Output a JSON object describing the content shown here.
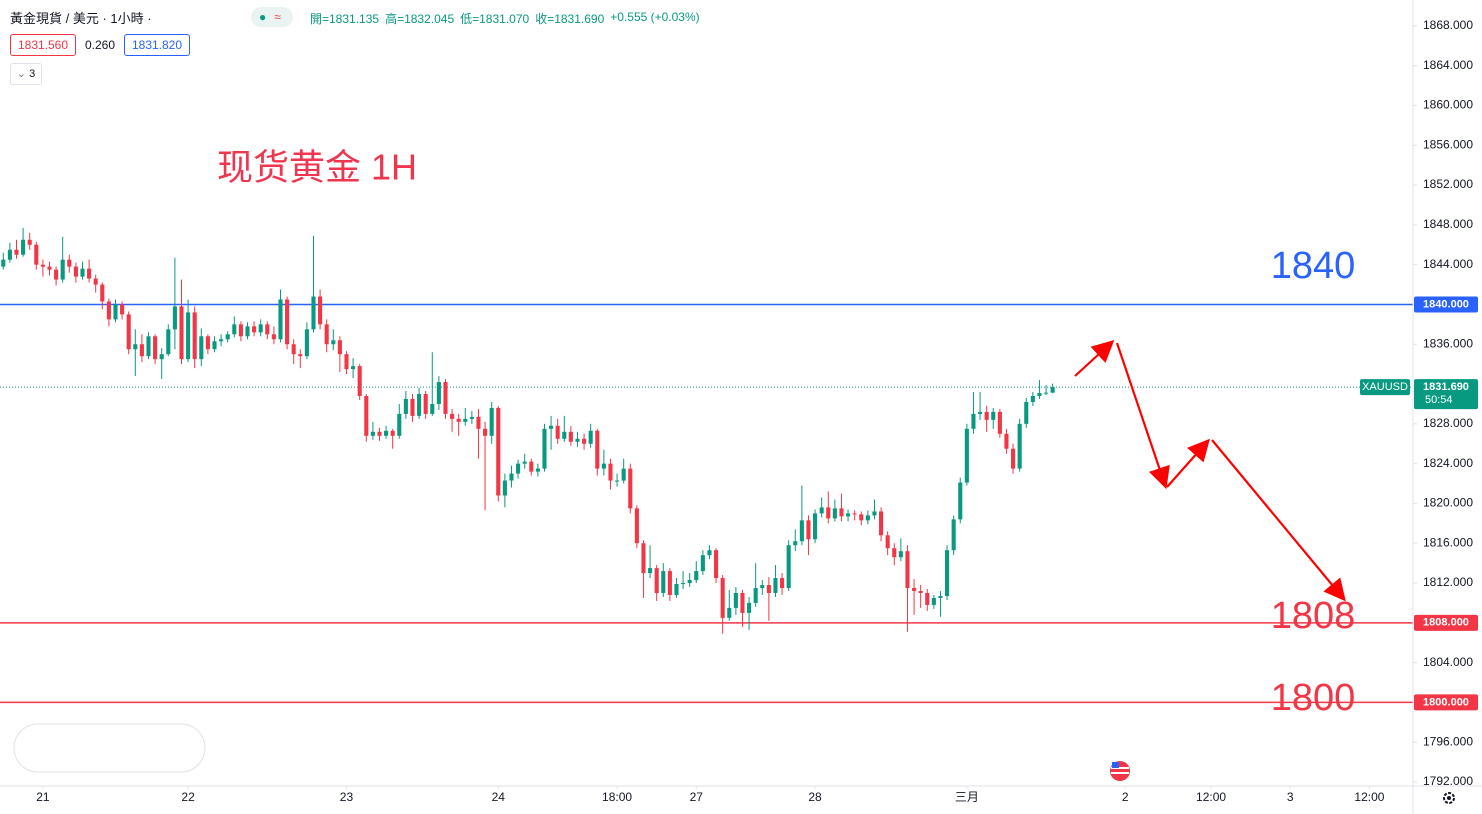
{
  "toolbar": {
    "symbol": "黃金現貨 / 美元 · 1小時 ·",
    "legend": [
      "開=1831.135",
      "高=1832.045",
      "低=1831.070",
      "收=1831.690",
      "+0.555 (+0.03%)"
    ],
    "bid": "1831.560",
    "spread": "0.260",
    "ask": "1831.820",
    "indicator_count": "3"
  },
  "chart_data": {
    "type": "candlestick",
    "title": "现货黄金 1H",
    "up_color": "#089981",
    "down_color": "#f23645",
    "xlim": [
      -0.5,
      213.6
    ],
    "ylim": [
      1791.6,
      1870.6
    ],
    "grid": false,
    "xticks": [
      {
        "value": 6,
        "label": "21"
      },
      {
        "value": 28,
        "label": "22"
      },
      {
        "value": 52,
        "label": "23"
      },
      {
        "value": 75,
        "label": "24"
      },
      {
        "value": 93,
        "label": "18:00"
      },
      {
        "value": 105,
        "label": "27"
      },
      {
        "value": 123,
        "label": "28"
      },
      {
        "value": 146,
        "label": "三月"
      },
      {
        "value": 170,
        "label": "2"
      },
      {
        "value": 183,
        "label": "12:00"
      },
      {
        "value": 195,
        "label": "3"
      },
      {
        "value": 207,
        "label": "12:00"
      }
    ],
    "yticks": [
      {
        "value": 1868,
        "label": "1868.000"
      },
      {
        "value": 1864,
        "label": "1864.000"
      },
      {
        "value": 1860,
        "label": "1860.000"
      },
      {
        "value": 1856,
        "label": "1856.000"
      },
      {
        "value": 1852,
        "label": "1852.000"
      },
      {
        "value": 1848,
        "label": "1848.000"
      },
      {
        "value": 1844,
        "label": "1844.000"
      },
      {
        "value": 1836,
        "label": "1836.000"
      },
      {
        "value": 1828,
        "label": "1828.000"
      },
      {
        "value": 1824,
        "label": "1824.000"
      },
      {
        "value": 1820,
        "label": "1820.000"
      },
      {
        "value": 1816,
        "label": "1816.000"
      },
      {
        "value": 1812,
        "label": "1812.000"
      },
      {
        "value": 1804,
        "label": "1804.000"
      },
      {
        "value": 1796,
        "label": "1796.000"
      },
      {
        "value": 1792,
        "label": "1792.000"
      }
    ],
    "hlines": [
      {
        "value": 1840,
        "label": "1840.000",
        "color": "#2962ff"
      },
      {
        "value": 1808,
        "label": "1808.000",
        "color": "#f23645"
      },
      {
        "value": 1800,
        "label": "1800.000",
        "color": "#f23645"
      }
    ],
    "last_price": {
      "value": 1831.69,
      "label": "1831.690",
      "symbol": "XAUUSD",
      "countdown": "50:54"
    },
    "x": [
      0,
      1,
      2,
      3,
      4,
      5,
      6,
      7,
      8,
      9,
      10,
      11,
      12,
      13,
      14,
      15,
      16,
      17,
      18,
      19,
      20,
      21,
      22,
      23,
      24,
      25,
      26,
      27,
      28,
      29,
      30,
      31,
      32,
      33,
      34,
      35,
      36,
      37,
      38,
      39,
      40,
      41,
      42,
      43,
      44,
      45,
      46,
      47,
      48,
      49,
      50,
      51,
      52,
      53,
      54,
      55,
      56,
      57,
      58,
      59,
      60,
      61,
      62,
      63,
      64,
      65,
      66,
      67,
      68,
      69,
      70,
      71,
      72,
      73,
      74,
      75,
      76,
      77,
      78,
      79,
      80,
      81,
      82,
      83,
      84,
      85,
      86,
      87,
      88,
      89,
      90,
      91,
      92,
      93,
      94,
      95,
      96,
      97,
      98,
      99,
      100,
      101,
      102,
      103,
      104,
      105,
      106,
      107,
      108,
      109,
      110,
      111,
      112,
      113,
      114,
      115,
      116,
      117,
      118,
      119,
      120,
      121,
      122,
      123,
      124,
      125,
      126,
      127,
      128,
      129,
      130,
      131,
      132,
      133,
      134,
      135,
      136,
      137,
      138,
      139,
      140,
      141,
      142,
      143,
      144,
      145,
      146,
      147,
      148,
      149,
      150,
      151,
      152,
      153,
      154,
      155,
      156,
      157,
      158,
      159
    ],
    "candles": [
      [
        1843.8,
        1845.2,
        1843.5,
        1844.5
      ],
      [
        1844.5,
        1846.2,
        1844.2,
        1845.5
      ],
      [
        1845.5,
        1846.5,
        1844.6,
        1845
      ],
      [
        1845,
        1847.7,
        1844.8,
        1846.5
      ],
      [
        1846.5,
        1847.2,
        1845.5,
        1846
      ],
      [
        1846,
        1846.3,
        1843.5,
        1844
      ],
      [
        1844,
        1844.5,
        1842.8,
        1843.8
      ],
      [
        1843.8,
        1844.3,
        1842.9,
        1843.5
      ],
      [
        1843.5,
        1843.8,
        1841.9,
        1842.5
      ],
      [
        1842.5,
        1846.8,
        1842.2,
        1844.5
      ],
      [
        1844.5,
        1845,
        1843.2,
        1843.8
      ],
      [
        1843.8,
        1844.2,
        1842.2,
        1842.8
      ],
      [
        1842.8,
        1844.3,
        1842.5,
        1843.6
      ],
      [
        1843.6,
        1844.5,
        1842.2,
        1842.6
      ],
      [
        1842.6,
        1843,
        1841.2,
        1842
      ],
      [
        1842,
        1842.2,
        1839.5,
        1840.3
      ],
      [
        1840.3,
        1840.6,
        1837.8,
        1838.5
      ],
      [
        1838.5,
        1840.5,
        1838.2,
        1840
      ],
      [
        1840,
        1840.3,
        1838.5,
        1839
      ],
      [
        1839,
        1839.3,
        1835,
        1835.5
      ],
      [
        1835.5,
        1837.5,
        1832.8,
        1836
      ],
      [
        1836,
        1837,
        1834.2,
        1834.8
      ],
      [
        1834.8,
        1837.2,
        1834.5,
        1836.8
      ],
      [
        1836.8,
        1837,
        1834,
        1834.5
      ],
      [
        1834.5,
        1835.6,
        1832.5,
        1835
      ],
      [
        1835,
        1838,
        1834.8,
        1837.5
      ],
      [
        1837.5,
        1844.7,
        1835.5,
        1839.8
      ],
      [
        1839.8,
        1842.5,
        1834,
        1834.5
      ],
      [
        1834.5,
        1840.5,
        1834.2,
        1839.2
      ],
      [
        1839.2,
        1839.8,
        1833.6,
        1834.5
      ],
      [
        1834.5,
        1837.6,
        1833.8,
        1836.8
      ],
      [
        1836.8,
        1837,
        1835,
        1835.5
      ],
      [
        1835.5,
        1836.8,
        1835.2,
        1836.3
      ],
      [
        1836.3,
        1837,
        1835.8,
        1836.5
      ],
      [
        1836.5,
        1837.3,
        1836.2,
        1837
      ],
      [
        1837,
        1838.8,
        1836.7,
        1838
      ],
      [
        1838,
        1838.3,
        1836.3,
        1836.8
      ],
      [
        1836.8,
        1838.2,
        1836.5,
        1837.8
      ],
      [
        1837.8,
        1838.3,
        1836.8,
        1837.2
      ],
      [
        1837.2,
        1838.5,
        1836.8,
        1838
      ],
      [
        1838,
        1838.3,
        1836.5,
        1837
      ],
      [
        1837,
        1837.8,
        1836,
        1836.5
      ],
      [
        1836.5,
        1841.5,
        1836.2,
        1840.5
      ],
      [
        1840.5,
        1840.8,
        1835.5,
        1836
      ],
      [
        1836,
        1836.5,
        1834,
        1835
      ],
      [
        1835,
        1835.5,
        1833.6,
        1834.8
      ],
      [
        1834.8,
        1838.2,
        1834.5,
        1837.5
      ],
      [
        1837.5,
        1846.9,
        1837.2,
        1840.8
      ],
      [
        1840.8,
        1841.5,
        1837.5,
        1838
      ],
      [
        1838,
        1838.5,
        1835.2,
        1836
      ],
      [
        1836,
        1837.5,
        1835.4,
        1836.4
      ],
      [
        1836.4,
        1836.8,
        1833.2,
        1835
      ],
      [
        1835,
        1835.3,
        1833,
        1833.5
      ],
      [
        1833.5,
        1834.6,
        1832.6,
        1833.8
      ],
      [
        1833.8,
        1834,
        1830.4,
        1830.8
      ],
      [
        1830.8,
        1831,
        1826.2,
        1826.8
      ],
      [
        1826.8,
        1828.2,
        1826.4,
        1827.2
      ],
      [
        1827.2,
        1827.6,
        1826.3,
        1826.8
      ],
      [
        1826.8,
        1827.8,
        1826.5,
        1827.3
      ],
      [
        1827.3,
        1827.5,
        1825.5,
        1826.8
      ],
      [
        1826.8,
        1830,
        1826.5,
        1829
      ],
      [
        1829,
        1831.3,
        1828.5,
        1830.5
      ],
      [
        1830.5,
        1831,
        1828.2,
        1828.8
      ],
      [
        1828.8,
        1831.6,
        1828.5,
        1831
      ],
      [
        1831,
        1831.3,
        1828.5,
        1829
      ],
      [
        1829,
        1835.2,
        1828.8,
        1830
      ],
      [
        1830,
        1832.8,
        1829.4,
        1832.2
      ],
      [
        1832.2,
        1832.5,
        1828.5,
        1829
      ],
      [
        1829,
        1829.5,
        1827.2,
        1828.5
      ],
      [
        1828.5,
        1829,
        1826.8,
        1828.2
      ],
      [
        1828.2,
        1829.6,
        1827.8,
        1828.5
      ],
      [
        1828.5,
        1829.3,
        1828,
        1828.7
      ],
      [
        1828.7,
        1829.5,
        1824.5,
        1827.5
      ],
      [
        1827.5,
        1828.2,
        1819.3,
        1826.8
      ],
      [
        1826.8,
        1830.2,
        1826,
        1829.6
      ],
      [
        1829.6,
        1829.8,
        1820.2,
        1820.8
      ],
      [
        1820.8,
        1823,
        1819.6,
        1822.3
      ],
      [
        1822.3,
        1823.8,
        1821.6,
        1823
      ],
      [
        1823,
        1824.4,
        1822.5,
        1824
      ],
      [
        1824,
        1825,
        1823.5,
        1824.2
      ],
      [
        1824.2,
        1824.5,
        1822.8,
        1823.2
      ],
      [
        1823.2,
        1824,
        1822.7,
        1823.5
      ],
      [
        1823.5,
        1828,
        1823.2,
        1827.5
      ],
      [
        1827.5,
        1828.8,
        1825.4,
        1827.8
      ],
      [
        1827.8,
        1828.5,
        1826,
        1826.5
      ],
      [
        1826.5,
        1828.8,
        1826.2,
        1827.2
      ],
      [
        1827.2,
        1827.8,
        1825.8,
        1826.2
      ],
      [
        1826.2,
        1827.2,
        1825.7,
        1826.5
      ],
      [
        1826.5,
        1827,
        1825.4,
        1826
      ],
      [
        1826,
        1828,
        1825.6,
        1827.3
      ],
      [
        1827.3,
        1827.5,
        1822.8,
        1823.5
      ],
      [
        1823.5,
        1825.4,
        1822.8,
        1824
      ],
      [
        1824,
        1824.5,
        1821.4,
        1822.3
      ],
      [
        1822.3,
        1823,
        1821.7,
        1822.3
      ],
      [
        1822.3,
        1824.5,
        1822,
        1823.5
      ],
      [
        1823.5,
        1824,
        1819,
        1819.5
      ],
      [
        1819.5,
        1819.8,
        1815.5,
        1816
      ],
      [
        1816,
        1816.3,
        1810.5,
        1813
      ],
      [
        1813,
        1815.8,
        1812.5,
        1813.5
      ],
      [
        1813.5,
        1813.8,
        1810.2,
        1811
      ],
      [
        1811,
        1814,
        1810.6,
        1813.2
      ],
      [
        1813.2,
        1813.5,
        1810.2,
        1810.8
      ],
      [
        1810.8,
        1812.5,
        1810.5,
        1811.9
      ],
      [
        1811.9,
        1813.2,
        1811.4,
        1812
      ],
      [
        1812,
        1813,
        1811.6,
        1812.3
      ],
      [
        1812.3,
        1814.2,
        1812,
        1813.2
      ],
      [
        1813.2,
        1815.3,
        1812.8,
        1814.8
      ],
      [
        1814.8,
        1815.8,
        1814.4,
        1815.3
      ],
      [
        1815.3,
        1815.5,
        1812,
        1812.5
      ],
      [
        1812.5,
        1812.8,
        1806.9,
        1808.5
      ],
      [
        1808.5,
        1811.3,
        1808.2,
        1809.5
      ],
      [
        1809.5,
        1811.6,
        1808.8,
        1811
      ],
      [
        1811,
        1811.3,
        1807.6,
        1809
      ],
      [
        1809,
        1810.6,
        1807.3,
        1810
      ],
      [
        1810,
        1814,
        1809.6,
        1811.5
      ],
      [
        1811.5,
        1812.3,
        1810.8,
        1811.8
      ],
      [
        1811.8,
        1812.6,
        1808.2,
        1811
      ],
      [
        1811,
        1813.8,
        1810.6,
        1812.5
      ],
      [
        1812.5,
        1813,
        1810.8,
        1811.5
      ],
      [
        1811.5,
        1816.3,
        1811.2,
        1815.8
      ],
      [
        1815.8,
        1817.4,
        1815.2,
        1816.2
      ],
      [
        1816.2,
        1821.8,
        1815.8,
        1818.3
      ],
      [
        1818.3,
        1818.8,
        1814.8,
        1816.4
      ],
      [
        1816.4,
        1819.4,
        1816,
        1819
      ],
      [
        1819,
        1820.6,
        1818.6,
        1819.6
      ],
      [
        1819.6,
        1821.2,
        1818,
        1818.5
      ],
      [
        1818.5,
        1820.4,
        1818.2,
        1819.5
      ],
      [
        1819.5,
        1821,
        1818.2,
        1818.7
      ],
      [
        1818.7,
        1819.4,
        1818.2,
        1819
      ],
      [
        1819,
        1819.3,
        1818.3,
        1818.9
      ],
      [
        1818.9,
        1819.2,
        1817.8,
        1818.3
      ],
      [
        1818.3,
        1819.3,
        1817.9,
        1818.8
      ],
      [
        1818.8,
        1820.4,
        1818.4,
        1819.2
      ],
      [
        1819.2,
        1819.6,
        1816.2,
        1816.8
      ],
      [
        1816.8,
        1817.2,
        1814.8,
        1815.5
      ],
      [
        1815.5,
        1816,
        1813.8,
        1814.6
      ],
      [
        1814.6,
        1816.5,
        1814.2,
        1815.2
      ],
      [
        1815.2,
        1815.8,
        1807.1,
        1811.5
      ],
      [
        1811.5,
        1812.4,
        1808.8,
        1811.2
      ],
      [
        1811.2,
        1811.8,
        1809.5,
        1811
      ],
      [
        1811,
        1811.4,
        1809.2,
        1809.8
      ],
      [
        1809.8,
        1810.8,
        1809.4,
        1810.5
      ],
      [
        1810.5,
        1811.2,
        1808.6,
        1810.7
      ],
      [
        1810.7,
        1815.8,
        1810.3,
        1815.3
      ],
      [
        1815.3,
        1818.8,
        1814.8,
        1818.4
      ],
      [
        1818.4,
        1822.6,
        1818,
        1822.1
      ],
      [
        1822.1,
        1828,
        1821.8,
        1827.5
      ],
      [
        1827.5,
        1831.2,
        1827,
        1829
      ],
      [
        1829,
        1831.2,
        1828.4,
        1829.2
      ],
      [
        1829.2,
        1829.8,
        1827.2,
        1828.4
      ],
      [
        1828.4,
        1829.6,
        1827.5,
        1829.2
      ],
      [
        1829.2,
        1829.5,
        1826.6,
        1827
      ],
      [
        1827,
        1827.5,
        1825,
        1825.5
      ],
      [
        1825.5,
        1826,
        1823,
        1823.5
      ],
      [
        1823.5,
        1828.5,
        1823.2,
        1828
      ],
      [
        1828,
        1830.6,
        1827.6,
        1830.2
      ],
      [
        1830.2,
        1831.2,
        1829.8,
        1830.8
      ],
      [
        1830.8,
        1832.4,
        1830.5,
        1831.1
      ],
      [
        1831.1,
        1831.9,
        1830.9,
        1831.135
      ],
      [
        1831.135,
        1832.045,
        1831.07,
        1831.69
      ]
    ]
  }
}
